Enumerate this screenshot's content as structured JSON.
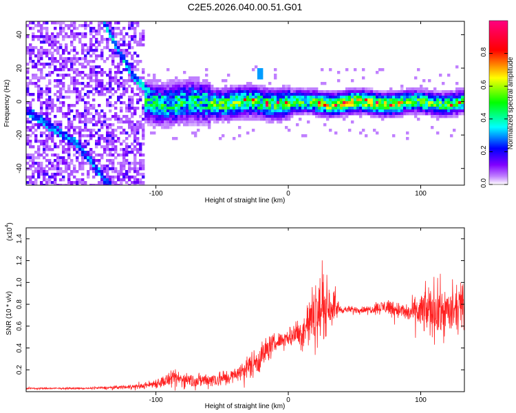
{
  "figure_title": "C2E5.2026.040.00.51.G01",
  "chart_data": [
    {
      "type": "heatmap",
      "xlabel": "Height of straight line (km)",
      "ylabel": "Frequency (Hz)",
      "xlim": [
        -198,
        133
      ],
      "ylim": [
        -50,
        48
      ],
      "xticks": [
        -100,
        0,
        100
      ],
      "xtick_labels": [
        "-100",
        "0",
        "100"
      ],
      "yticks": [
        -40,
        -20,
        0,
        20,
        40
      ],
      "ytick_labels": [
        "-40",
        "-20",
        "0",
        "20",
        "40"
      ],
      "colorbar": {
        "label": "Normalized spectral amplitude",
        "range": [
          0,
          1
        ],
        "ticks": [
          0.0,
          0.2,
          0.4,
          0.6,
          0.8
        ],
        "tick_labels": [
          "0.0",
          "0.2",
          "0.4",
          "0.6",
          "0.8"
        ],
        "colors": [
          "#ffffff",
          "#8000ff",
          "#0000ff",
          "#00ffff",
          "#00ff00",
          "#ffff00",
          "#ff0000",
          "#ff0080"
        ]
      },
      "features": {
        "noise_region_x": [
          -198,
          -110
        ],
        "main_band_x": [
          -110,
          133
        ],
        "main_band_freq_hz": 0,
        "streak_points": [
          [
            -140,
            48
          ],
          [
            -120,
            18
          ],
          [
            -105,
            5
          ]
        ],
        "streak2_points": [
          [
            -198,
            -5
          ],
          [
            -160,
            -25
          ],
          [
            -135,
            -50
          ]
        ],
        "blip": {
          "x": -22,
          "y": 18
        }
      }
    },
    {
      "type": "line",
      "xlabel": "Height of straight line (km)",
      "ylabel": "SNR (10 * v/v)",
      "multiplier_label": "(x10",
      "multiplier_exp": "4",
      "multiplier_close": ")",
      "xlim": [
        -198,
        133
      ],
      "ylim": [
        0,
        1.5
      ],
      "xticks": [
        -100,
        0,
        100
      ],
      "xtick_labels": [
        "-100",
        "0",
        "100"
      ],
      "yticks": [
        0.2,
        0.4,
        0.6,
        0.8,
        1.0,
        1.2,
        1.4
      ],
      "ytick_labels": [
        "0.2",
        "0.4",
        "0.6",
        "0.8",
        "1.0",
        "1.2",
        "1.4"
      ],
      "color": "#ff2020",
      "series": [
        {
          "name": "SNR",
          "envelope": [
            {
              "x": -198,
              "mean": 0.03,
              "amp": 0.01
            },
            {
              "x": -150,
              "mean": 0.03,
              "amp": 0.01
            },
            {
              "x": -110,
              "mean": 0.05,
              "amp": 0.03
            },
            {
              "x": -85,
              "mean": 0.12,
              "amp": 0.1
            },
            {
              "x": -70,
              "mean": 0.1,
              "amp": 0.08
            },
            {
              "x": -50,
              "mean": 0.12,
              "amp": 0.1
            },
            {
              "x": -40,
              "mean": 0.15,
              "amp": 0.08
            },
            {
              "x": -22,
              "mean": 0.3,
              "amp": 0.18
            },
            {
              "x": -15,
              "mean": 0.4,
              "amp": 0.15
            },
            {
              "x": -5,
              "mean": 0.48,
              "amp": 0.08
            },
            {
              "x": 10,
              "mean": 0.55,
              "amp": 0.2
            },
            {
              "x": 20,
              "mean": 0.7,
              "amp": 0.4
            },
            {
              "x": 30,
              "mean": 0.8,
              "amp": 0.3
            },
            {
              "x": 40,
              "mean": 0.75,
              "amp": 0.04
            },
            {
              "x": 60,
              "mean": 0.75,
              "amp": 0.04
            },
            {
              "x": 75,
              "mean": 0.78,
              "amp": 0.1
            },
            {
              "x": 90,
              "mean": 0.72,
              "amp": 0.1
            },
            {
              "x": 110,
              "mean": 0.75,
              "amp": 0.35
            },
            {
              "x": 125,
              "mean": 0.72,
              "amp": 0.25
            },
            {
              "x": 133,
              "mean": 0.8,
              "amp": 0.25
            }
          ]
        }
      ]
    }
  ]
}
